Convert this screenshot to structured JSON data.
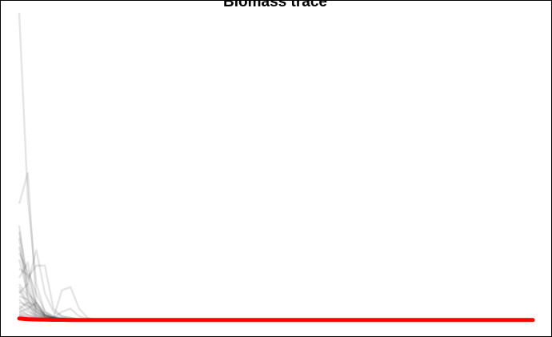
{
  "chart_data": {
    "type": "line",
    "title": "Biomass trace",
    "xlabel": "",
    "ylabel": "",
    "grid": false,
    "legend": "none",
    "xlim": [
      0,
      60
    ],
    "ylim": [
      0,
      100
    ],
    "trace_color": "#000000",
    "trace_opacity": 0.1,
    "mean_color": "#ff0000",
    "series": [
      {
        "values": [
          100,
          40,
          12,
          3,
          1.5,
          0.8,
          0.5,
          0.3,
          0.2,
          0.2,
          0.1,
          0.1
        ]
      },
      {
        "values": [
          38,
          48,
          6,
          2,
          1,
          0.8,
          0.5,
          0.3,
          0.2,
          0.1
        ]
      },
      {
        "values": [
          29,
          14,
          18,
          18,
          4,
          1.5,
          1,
          0.5,
          0.4,
          0.3
        ]
      },
      {
        "values": [
          24,
          12,
          23,
          9,
          3,
          1.5,
          1,
          0.6,
          0.4,
          0.3
        ]
      },
      {
        "values": [
          31,
          10,
          4,
          2,
          1,
          10,
          11,
          4,
          1,
          0.5,
          0.3,
          0.2
        ]
      },
      {
        "values": [
          22,
          16,
          9,
          3,
          1.5,
          1,
          0.8,
          0.5,
          0.4,
          0.3
        ]
      },
      {
        "values": [
          20,
          9,
          6,
          2.5,
          1.2,
          0.8,
          0.5,
          0.4
        ]
      },
      {
        "values": [
          17,
          15,
          5,
          2,
          1,
          0.6,
          0.4,
          0.3
        ]
      },
      {
        "values": [
          27,
          7,
          3,
          1.5,
          1,
          3,
          4,
          1.5,
          0.8,
          0.5
        ]
      },
      {
        "values": [
          14,
          19,
          4,
          1.8,
          0.9,
          0.6,
          0.4,
          0.3
        ]
      },
      {
        "values": [
          12,
          8,
          4,
          1.5,
          0.8,
          0.5,
          0.3
        ]
      },
      {
        "values": [
          11,
          6,
          5,
          2,
          1,
          0.5,
          0.3,
          0.2
        ]
      },
      {
        "values": [
          9,
          12,
          3,
          1.5,
          0.8,
          0.5,
          0.3
        ]
      },
      {
        "values": [
          10,
          5,
          3,
          1.2,
          0.6,
          0.4,
          0.3
        ]
      },
      {
        "values": [
          8,
          7,
          2.5,
          1,
          0.6,
          0.4,
          0.2
        ]
      },
      {
        "values": [
          7,
          4,
          6,
          1.5,
          0.7,
          0.4,
          0.2
        ]
      },
      {
        "values": [
          6,
          5,
          2,
          1,
          0.5,
          0.3,
          0.2
        ]
      },
      {
        "values": [
          5,
          3,
          2,
          1,
          0.5,
          0.3
        ]
      },
      {
        "values": [
          4,
          6,
          1.5,
          0.8,
          0.4,
          0.3
        ]
      },
      {
        "values": [
          4,
          2,
          1.5,
          0.7,
          0.4,
          0.2
        ]
      },
      {
        "values": [
          3,
          2,
          1,
          0.6,
          0.4,
          0.2
        ]
      },
      {
        "values": [
          3,
          4,
          1,
          0.5,
          0.3,
          0.2
        ]
      },
      {
        "values": [
          2.5,
          1.5,
          1,
          0.5,
          0.3
        ]
      },
      {
        "values": [
          2,
          1.2,
          0.8,
          0.5,
          0.3
        ]
      },
      {
        "values": [
          2,
          0.5,
          0.3,
          0.2,
          0.3,
          0.4,
          0.3,
          0.2,
          0.2,
          0.3,
          0.2,
          0.1,
          0.1,
          0.2,
          0.1,
          0.1,
          0.1,
          0.1,
          0.1,
          0.2,
          0.1,
          0.1,
          0.1,
          0.1,
          0.1
        ]
      },
      {
        "values": [
          1.5,
          1,
          0.6,
          0.4,
          0.2,
          0.1,
          0.1,
          0.1,
          0.1,
          0.1,
          0.2,
          0.3,
          0.5,
          0.2,
          0.1,
          0.1,
          0.1,
          0.1,
          0.1
        ]
      },
      {
        "values": [
          1,
          0.8,
          0.5,
          0.3,
          0.2,
          0.1
        ]
      },
      {
        "values": [
          1,
          0.5,
          0.3,
          0.5,
          1.2,
          0.4,
          0.3,
          0.2,
          0.2,
          0.2,
          0.1
        ]
      },
      {
        "values": [
          0.8,
          0.4,
          0.3,
          0.2,
          0.1
        ]
      },
      {
        "values": [
          0.6,
          0.3,
          0.2,
          0.1
        ]
      }
    ],
    "mean": {
      "name": "",
      "values": [
        0.8,
        0.6,
        0.5,
        0.45,
        0.4,
        0.38,
        0.35,
        0.34,
        0.33,
        0.32,
        0.31,
        0.3,
        0.3,
        0.3,
        0.3,
        0.3,
        0.3,
        0.3,
        0.3,
        0.3,
        0.3,
        0.3,
        0.3,
        0.3,
        0.3,
        0.3,
        0.3,
        0.3,
        0.3,
        0.3,
        0.3,
        0.3,
        0.3,
        0.3,
        0.3,
        0.3,
        0.3,
        0.3,
        0.3,
        0.3,
        0.3,
        0.3,
        0.3,
        0.3,
        0.3,
        0.3,
        0.3,
        0.3,
        0.3,
        0.3,
        0.3,
        0.3,
        0.3,
        0.3,
        0.3,
        0.3,
        0.3,
        0.3,
        0.3,
        0.3,
        0.3
      ]
    }
  }
}
